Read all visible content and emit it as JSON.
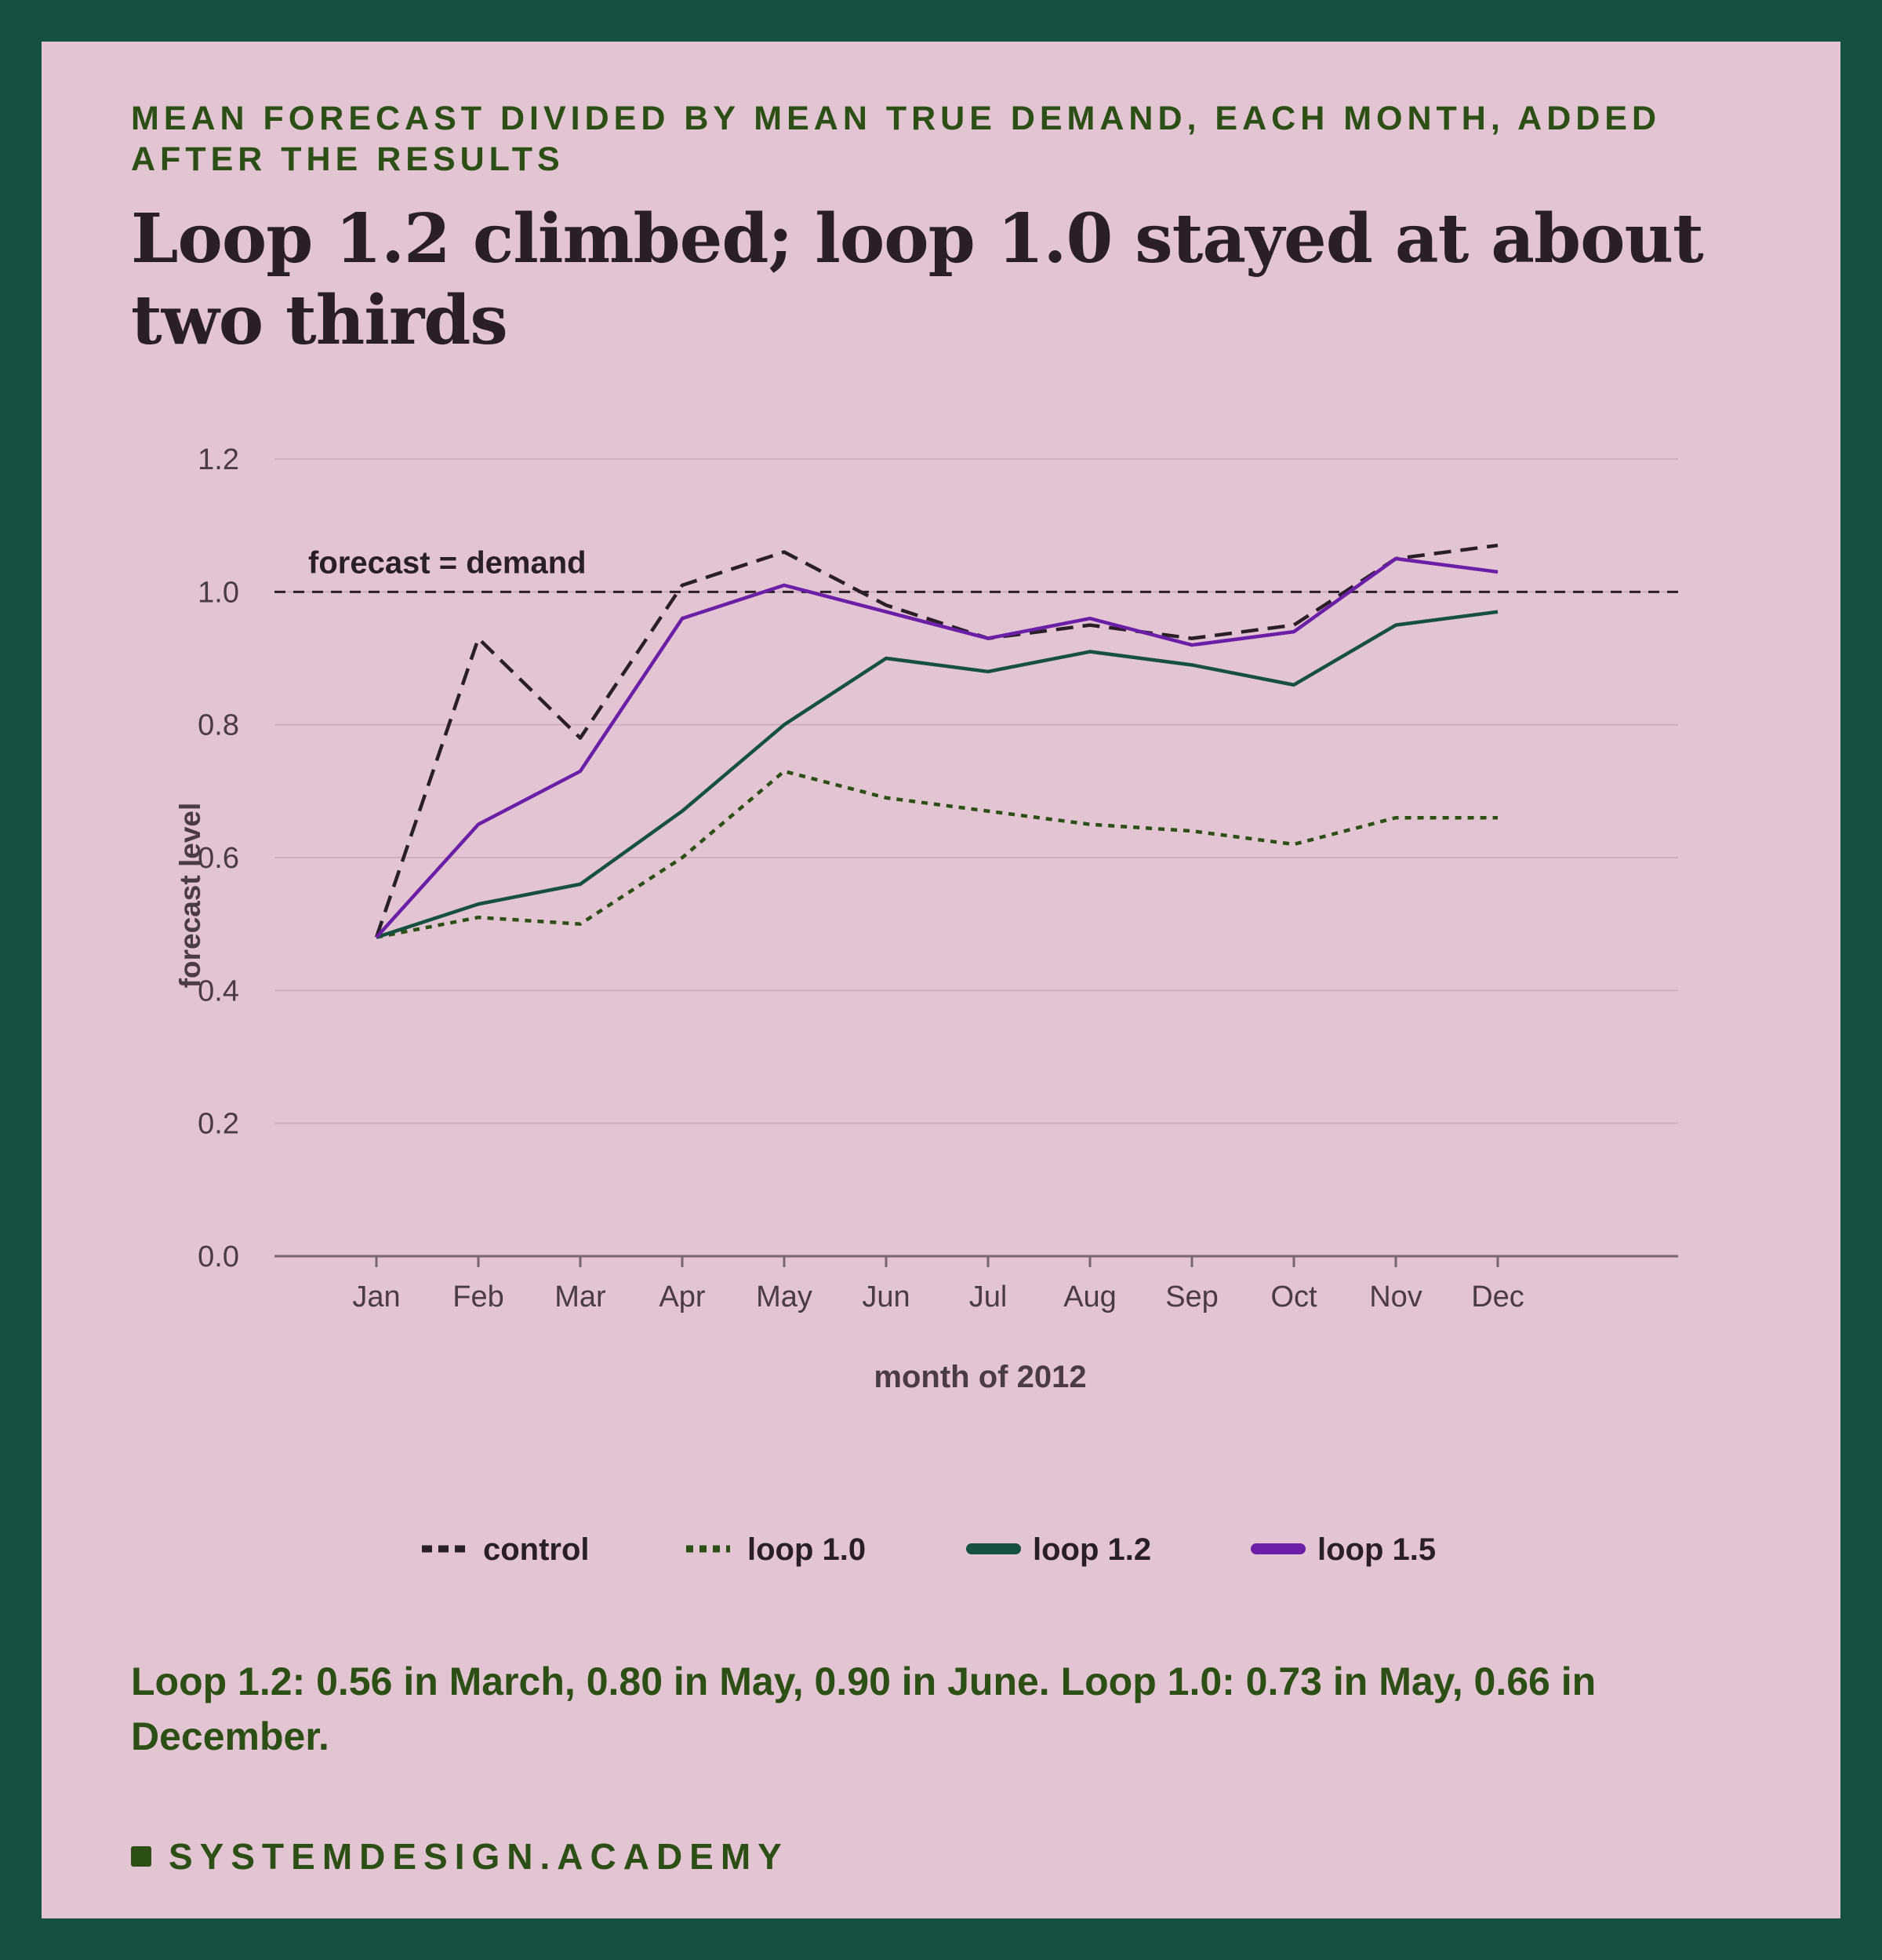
{
  "kicker": "MEAN FORECAST DIVIDED BY MEAN TRUE DEMAND, EACH MONTH, ADDED AFTER THE RESULTS",
  "title": "Loop 1.2 climbed; loop 1.0 stayed at about two thirds",
  "caption": "Loop 1.2: 0.56 in March, 0.80 in May, 0.90 in June. Loop 1.0: 0.73 in May, 0.66 in December.",
  "brand": "SYSTEMDESIGN.ACADEMY",
  "colors": {
    "background": "#e3c4d3",
    "frame": "#16503f",
    "control": "#2a1f27",
    "loop_1_0": "#2b4f14",
    "loop_1_2": "#16503f",
    "loop_1_5": "#6a1fa6"
  },
  "chart_data": {
    "type": "line",
    "xlabel": "month of 2012",
    "ylabel": "forecast level",
    "ylim": [
      0,
      1.2
    ],
    "yticks": [
      "0.0",
      "0.2",
      "0.4",
      "0.6",
      "0.8",
      "1.0",
      "1.2"
    ],
    "grid": true,
    "legend_position": "bottom",
    "categories": [
      "Jan",
      "Feb",
      "Mar",
      "Apr",
      "May",
      "Jun",
      "Jul",
      "Aug",
      "Sep",
      "Oct",
      "Nov",
      "Dec"
    ],
    "reference_line": {
      "y": 1.0,
      "label": "forecast = demand"
    },
    "series": [
      {
        "name": "control",
        "style": "dashed",
        "color": "#2a1f27",
        "values": [
          0.48,
          0.93,
          0.78,
          1.01,
          1.06,
          0.98,
          0.93,
          0.95,
          0.93,
          0.95,
          1.05,
          1.07
        ]
      },
      {
        "name": "loop 1.0",
        "style": "dotted",
        "color": "#2b4f14",
        "values": [
          0.48,
          0.51,
          0.5,
          0.6,
          0.73,
          0.69,
          0.67,
          0.65,
          0.64,
          0.62,
          0.66,
          0.66
        ]
      },
      {
        "name": "loop 1.2",
        "style": "solid",
        "color": "#16503f",
        "values": [
          0.48,
          0.53,
          0.56,
          0.67,
          0.8,
          0.9,
          0.88,
          0.91,
          0.89,
          0.86,
          0.95,
          0.97
        ]
      },
      {
        "name": "loop 1.5",
        "style": "solid",
        "color": "#6a1fa6",
        "values": [
          0.48,
          0.65,
          0.73,
          0.96,
          1.01,
          0.97,
          0.93,
          0.96,
          0.92,
          0.94,
          1.05,
          1.03
        ]
      }
    ]
  }
}
